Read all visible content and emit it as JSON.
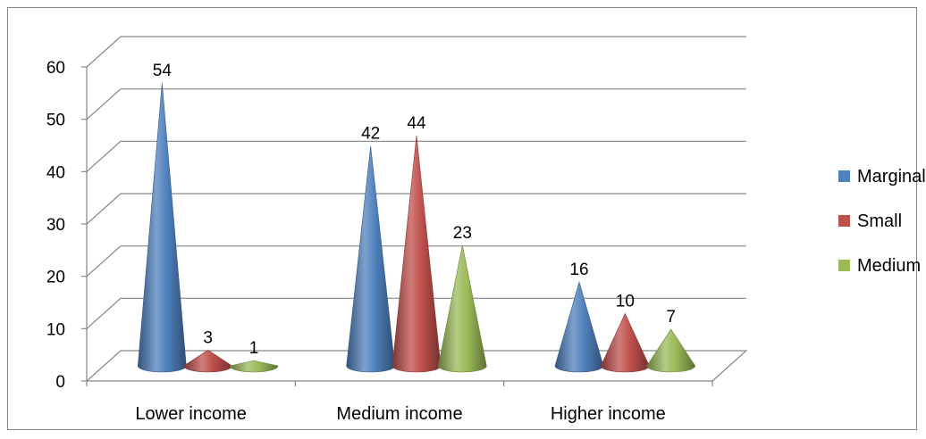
{
  "chart_data": {
    "type": "bar",
    "style": "3d-cone",
    "title": "",
    "xlabel": "",
    "ylabel": "",
    "categories": [
      "Lower income",
      "Medium income",
      "Higher income"
    ],
    "series": [
      {
        "name": "Marginal",
        "values": [
          54,
          42,
          16
        ],
        "color": "#4f81bd"
      },
      {
        "name": "Small",
        "values": [
          3,
          44,
          10
        ],
        "color": "#c0504d"
      },
      {
        "name": "Medium",
        "values": [
          1,
          23,
          7
        ],
        "color": "#9bbb59"
      }
    ],
    "ylim": [
      0,
      60
    ],
    "yticks": [
      "0",
      "10",
      "20",
      "30",
      "40",
      "50",
      "60"
    ],
    "grid": true,
    "legend_position": "right"
  }
}
